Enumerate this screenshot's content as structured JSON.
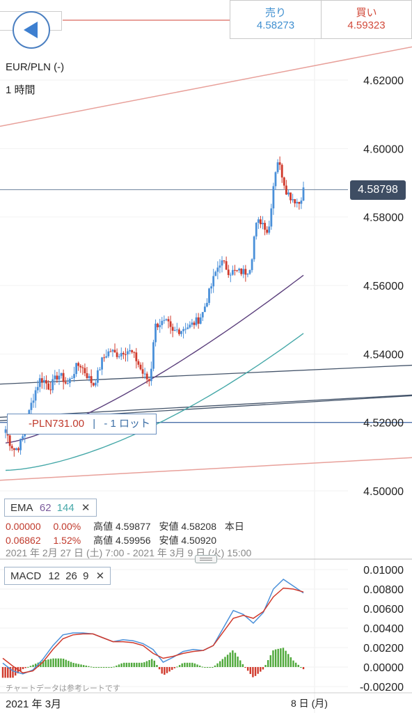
{
  "header": {
    "sell_label": "売り",
    "sell_price": "4.58273",
    "buy_label": "買い",
    "buy_price": "4.59323"
  },
  "symbol": "EUR/PLN (-)",
  "timeframe": "1 時間",
  "current_price": "4.58798",
  "position": {
    "pnl": "-PLN731.00",
    "separator": "|",
    "lot": "- 1 ロット"
  },
  "indicators": {
    "ema": {
      "label": "EMA",
      "period1": "62",
      "period2": "144",
      "close": "✕"
    },
    "macd": {
      "label": "MACD",
      "fast": "12",
      "slow": "26",
      "signal": "9",
      "close": "✕"
    }
  },
  "stats": {
    "row1": {
      "change": "0.00000",
      "pct": "0.00%",
      "high_label": "高値",
      "high": "4.59877",
      "low_label": "安値",
      "low": "4.58208",
      "period": "本日"
    },
    "row2": {
      "change": "0.06862",
      "pct": "1.52%",
      "high_label": "高値",
      "high": "4.59956",
      "low_label": "安値",
      "low": "4.50920"
    },
    "range": "2021 年 2月 27 日 (土) 7:00 - 2021 年 3月 9 日 (火) 15:00"
  },
  "footer": {
    "note": "チャートデータは参考レートです",
    "month": "2021 年 3月",
    "day_tick": "8 日 (月)"
  },
  "colors": {
    "up": "#4a90d9",
    "down": "#d0392b",
    "ema62": "#5b3f7c",
    "ema144": "#45a8a8",
    "trend_red": "#e8a09a",
    "trend_blue": "#44546a",
    "hist_up": "#4ea83a",
    "hist_down": "#d0392b"
  },
  "chart_data": [
    {
      "type": "candlestick",
      "symbol": "EUR/PLN",
      "timeframe": "1 時間",
      "ylim": [
        4.49,
        4.63
      ],
      "y_ticks": [
        "4.62000",
        "4.60000",
        "4.58000",
        "4.56000",
        "4.54000",
        "4.52000",
        "4.50000"
      ],
      "current_price": 4.58798,
      "close_path": [
        4.518,
        4.514,
        4.512,
        4.513,
        4.516,
        4.521,
        4.526,
        4.53,
        4.533,
        4.532,
        4.53,
        4.532,
        4.534,
        4.533,
        4.531,
        4.533,
        4.536,
        4.537,
        4.535,
        4.533,
        4.531,
        4.534,
        4.538,
        4.54,
        4.541,
        4.54,
        4.54,
        4.541,
        4.541,
        4.54,
        4.538,
        4.535,
        4.533,
        4.532,
        4.548,
        4.549,
        4.549,
        4.549,
        4.546,
        4.547,
        4.547,
        4.548,
        4.548,
        4.549,
        4.55,
        4.552,
        4.556,
        4.56,
        4.564,
        4.567,
        4.566,
        4.564,
        4.564,
        4.564,
        4.564,
        4.564,
        4.566,
        4.577,
        4.579,
        4.578,
        4.575,
        4.588,
        4.597,
        4.593,
        4.588,
        4.586,
        4.585,
        4.584,
        4.588
      ],
      "ema": [
        {
          "name": "EMA 62",
          "start": 4.514,
          "end": 4.563
        },
        {
          "name": "EMA 144",
          "start": 4.506,
          "end": 4.546
        }
      ]
    },
    {
      "type": "line",
      "name": "MACD 12 26 9",
      "ylim": [
        -0.0025,
        0.0105
      ],
      "y_ticks": [
        "0.01000",
        "0.00800",
        "0.00600",
        "0.00400",
        "0.00200",
        "0.00000",
        "-0.00200"
      ],
      "macd": [
        0.0004,
        -0.0004,
        -0.0007,
        -0.0003,
        0.0008,
        0.0022,
        0.0033,
        0.0035,
        0.0035,
        0.0034,
        0.003,
        0.0026,
        0.0028,
        0.0027,
        0.0024,
        0.0018,
        0.0005,
        0.001,
        0.0016,
        0.0018,
        0.0017,
        0.0022,
        0.004,
        0.0058,
        0.0054,
        0.0045,
        0.0056,
        0.008,
        0.009,
        0.0083,
        0.0076
      ],
      "signal": [
        0.0009,
        0.0001,
        -0.0006,
        -0.0004,
        0.0005,
        0.0018,
        0.0029,
        0.0033,
        0.0034,
        0.0034,
        0.003,
        0.0026,
        0.0026,
        0.0025,
        0.0022,
        0.0014,
        0.0009,
        0.0011,
        0.0014,
        0.0016,
        0.0017,
        0.0022,
        0.0036,
        0.005,
        0.0053,
        0.005,
        0.0057,
        0.0072,
        0.0081,
        0.008,
        0.0077
      ]
    }
  ]
}
